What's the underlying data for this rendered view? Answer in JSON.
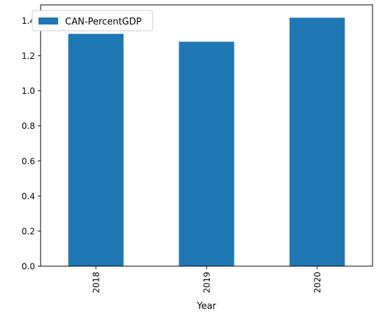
{
  "chart_data": {
    "type": "bar",
    "categories": [
      "2018",
      "2019",
      "2020"
    ],
    "series": [
      {
        "name": "CAN-PercentGDP",
        "values": [
          1.325,
          1.28,
          1.417
        ],
        "color": "#1f77b4"
      }
    ],
    "title": "",
    "xlabel": "Year",
    "ylabel": "",
    "ylim": [
      0,
      1.49
    ],
    "yticks": [
      0.0,
      0.2,
      0.4,
      0.6,
      0.8,
      1.0,
      1.2,
      1.4
    ],
    "ytick_labels": [
      "0.0",
      "0.2",
      "0.4",
      "0.6",
      "0.8",
      "1.0",
      "1.2",
      "1.4"
    ],
    "grid": false,
    "legend_position": "top-left",
    "xtick_rotation": "vertical"
  }
}
